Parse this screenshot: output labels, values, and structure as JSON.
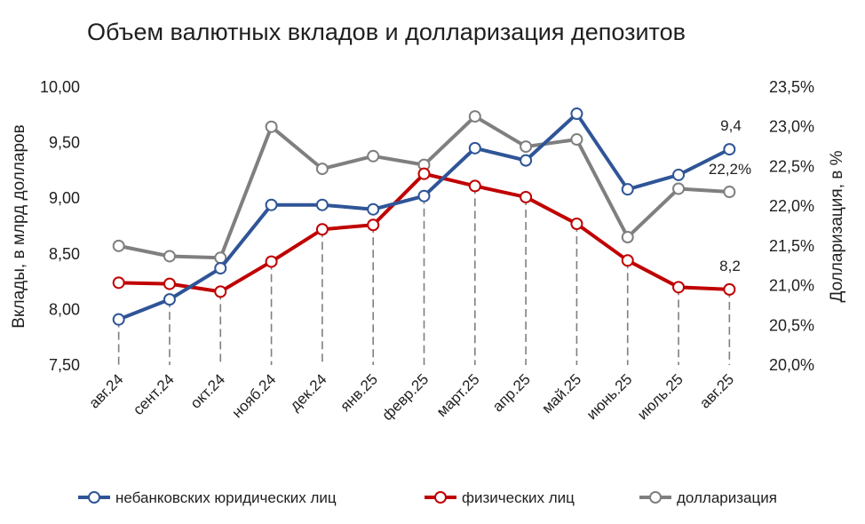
{
  "chart_data": {
    "type": "line",
    "title": "Объем валютных вкладов и долларизация депозитов",
    "categories": [
      "авг.24",
      "сент.24",
      "окт.24",
      "нояб.24",
      "дек.24",
      "янв.25",
      "февр.25",
      "март.25",
      "апр.25",
      "май.25",
      "июнь.25",
      "июль.25",
      "авг.25"
    ],
    "ylabel": "Вклады, в млрд долларов",
    "ylabel_right": "Долларизация, в %",
    "ylim": [
      7.5,
      10.0
    ],
    "ylim_right": [
      20.0,
      23.5
    ],
    "yticks": [
      "7,50",
      "8,00",
      "8,50",
      "9,00",
      "9,50",
      "10,00"
    ],
    "yticks_right": [
      "20,0%",
      "20,5%",
      "21,0%",
      "21,5%",
      "22,0%",
      "22,5%",
      "23,0%",
      "23,5%"
    ],
    "series": [
      {
        "name": "небанковских юридических лиц",
        "axis": "left",
        "color": "#2f5597",
        "values": [
          7.91,
          8.09,
          8.37,
          8.94,
          8.94,
          8.9,
          9.02,
          9.45,
          9.34,
          9.76,
          9.08,
          9.21,
          9.44
        ]
      },
      {
        "name": "физических лиц",
        "axis": "left",
        "color": "#c00000",
        "values": [
          8.24,
          8.23,
          8.16,
          8.43,
          8.72,
          8.76,
          9.22,
          9.11,
          9.01,
          8.77,
          8.44,
          8.2,
          8.18
        ]
      },
      {
        "name": "долларизация",
        "axis": "right",
        "color": "#7f7f7f",
        "values": [
          21.5,
          21.37,
          21.35,
          23.0,
          22.47,
          22.63,
          22.52,
          23.13,
          22.75,
          22.84,
          21.61,
          22.22,
          22.18
        ]
      }
    ],
    "annotations": [
      "9,4",
      "22,2%",
      "8,2"
    ],
    "grid": false,
    "legend_position": "bottom"
  }
}
